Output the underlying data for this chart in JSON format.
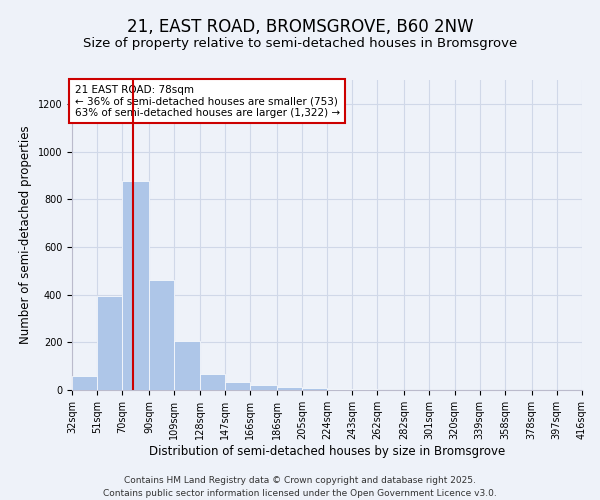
{
  "title": "21, EAST ROAD, BROMSGROVE, B60 2NW",
  "subtitle": "Size of property relative to semi-detached houses in Bromsgrove",
  "xlabel": "Distribution of semi-detached houses by size in Bromsgrove",
  "ylabel": "Number of semi-detached properties",
  "bar_values": [
    60,
    395,
    875,
    460,
    205,
    68,
    32,
    20,
    12,
    8,
    4,
    3,
    2,
    1,
    1,
    1,
    0,
    0,
    0,
    0
  ],
  "bin_labels": [
    "32sqm",
    "51sqm",
    "70sqm",
    "90sqm",
    "109sqm",
    "128sqm",
    "147sqm",
    "166sqm",
    "186sqm",
    "205sqm",
    "224sqm",
    "243sqm",
    "262sqm",
    "282sqm",
    "301sqm",
    "320sqm",
    "339sqm",
    "358sqm",
    "378sqm",
    "397sqm",
    "416sqm"
  ],
  "bin_edges": [
    32,
    51,
    70,
    90,
    109,
    128,
    147,
    166,
    186,
    205,
    224,
    243,
    262,
    282,
    301,
    320,
    339,
    358,
    378,
    397,
    416
  ],
  "bar_color": "#aec6e8",
  "grid_color": "#d0d8e8",
  "bg_color": "#eef2f9",
  "vline_x": 78,
  "vline_color": "#cc0000",
  "annotation_text": "21 EAST ROAD: 78sqm\n← 36% of semi-detached houses are smaller (753)\n63% of semi-detached houses are larger (1,322) →",
  "annotation_box_color": "#ffffff",
  "annotation_box_edge": "#cc0000",
  "ylim": [
    0,
    1300
  ],
  "yticks": [
    0,
    200,
    400,
    600,
    800,
    1000,
    1200
  ],
  "footer_line1": "Contains HM Land Registry data © Crown copyright and database right 2025.",
  "footer_line2": "Contains public sector information licensed under the Open Government Licence v3.0.",
  "title_fontsize": 12,
  "subtitle_fontsize": 9.5,
  "axis_label_fontsize": 8.5,
  "tick_fontsize": 7,
  "annotation_fontsize": 7.5,
  "footer_fontsize": 6.5
}
